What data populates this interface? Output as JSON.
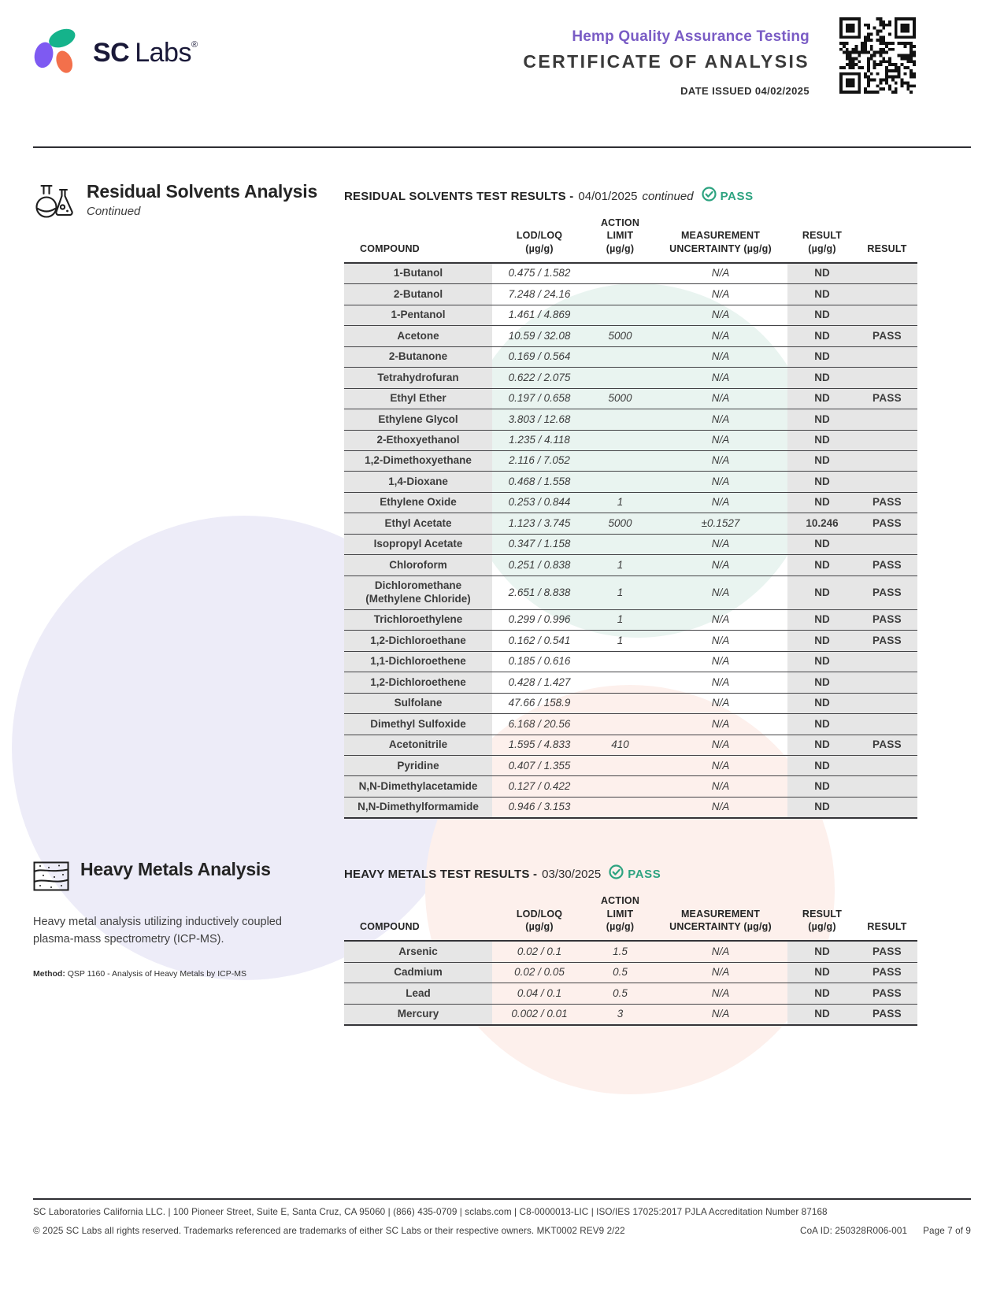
{
  "header": {
    "logo": {
      "brand_bold": "SC",
      "brand_light": "Labs",
      "registered": "®",
      "mark_icon": "sclabs-logo-mark",
      "mark_colors": {
        "teal": "#15b38b",
        "purple": "#7e5af2",
        "coral": "#f3704b"
      }
    },
    "program_title": "Hemp Quality Assurance Testing",
    "document_title": "CERTIFICATE OF ANALYSIS",
    "date_issued": "DATE ISSUED 04/02/2025",
    "qr_icon": "qr-code"
  },
  "solvents_section": {
    "icon": "flask-icon",
    "title": "Residual Solvents Analysis",
    "subtitle": "Continued",
    "results_title": "RESIDUAL SOLVENTS TEST RESULTS -",
    "results_date": "04/01/2025",
    "results_continued": "continued",
    "pass_icon": "check-icon",
    "pass_label": "PASS",
    "columns": [
      "COMPOUND",
      "LOD/LOQ\n(µg/g)",
      "ACTION LIMIT\n(µg/g)",
      "MEASUREMENT\nUNCERTAINTY (µg/g)",
      "RESULT\n(µg/g)",
      "RESULT"
    ],
    "rows": [
      {
        "name": "1-Butanol",
        "lod": "0.475 / 1.582",
        "action": "",
        "unc": "N/A",
        "result": "ND",
        "status": ""
      },
      {
        "name": "2-Butanol",
        "lod": "7.248 / 24.16",
        "action": "",
        "unc": "N/A",
        "result": "ND",
        "status": ""
      },
      {
        "name": "1-Pentanol",
        "lod": "1.461 / 4.869",
        "action": "",
        "unc": "N/A",
        "result": "ND",
        "status": ""
      },
      {
        "name": "Acetone",
        "lod": "10.59 / 32.08",
        "action": "5000",
        "unc": "N/A",
        "result": "ND",
        "status": "PASS"
      },
      {
        "name": "2-Butanone",
        "lod": "0.169 / 0.564",
        "action": "",
        "unc": "N/A",
        "result": "ND",
        "status": ""
      },
      {
        "name": "Tetrahydrofuran",
        "lod": "0.622 / 2.075",
        "action": "",
        "unc": "N/A",
        "result": "ND",
        "status": ""
      },
      {
        "name": "Ethyl Ether",
        "lod": "0.197 / 0.658",
        "action": "5000",
        "unc": "N/A",
        "result": "ND",
        "status": "PASS"
      },
      {
        "name": "Ethylene Glycol",
        "lod": "3.803 / 12.68",
        "action": "",
        "unc": "N/A",
        "result": "ND",
        "status": ""
      },
      {
        "name": "2-Ethoxyethanol",
        "lod": "1.235 / 4.118",
        "action": "",
        "unc": "N/A",
        "result": "ND",
        "status": ""
      },
      {
        "name": "1,2-Dimethoxyethane",
        "lod": "2.116 / 7.052",
        "action": "",
        "unc": "N/A",
        "result": "ND",
        "status": ""
      },
      {
        "name": "1,4-Dioxane",
        "lod": "0.468 / 1.558",
        "action": "",
        "unc": "N/A",
        "result": "ND",
        "status": ""
      },
      {
        "name": "Ethylene Oxide",
        "lod": "0.253 / 0.844",
        "action": "1",
        "unc": "N/A",
        "result": "ND",
        "status": "PASS"
      },
      {
        "name": "Ethyl Acetate",
        "lod": "1.123 / 3.745",
        "action": "5000",
        "unc": "±0.1527",
        "result": "10.246",
        "status": "PASS"
      },
      {
        "name": "Isopropyl Acetate",
        "lod": "0.347 / 1.158",
        "action": "",
        "unc": "N/A",
        "result": "ND",
        "status": ""
      },
      {
        "name": "Chloroform",
        "lod": "0.251 / 0.838",
        "action": "1",
        "unc": "N/A",
        "result": "ND",
        "status": "PASS"
      },
      {
        "name": "Dichloromethane\n(Methylene Chloride)",
        "lod": "2.651 / 8.838",
        "action": "1",
        "unc": "N/A",
        "result": "ND",
        "status": "PASS"
      },
      {
        "name": "Trichloroethylene",
        "lod": "0.299 / 0.996",
        "action": "1",
        "unc": "N/A",
        "result": "ND",
        "status": "PASS"
      },
      {
        "name": "1,2-Dichloroethane",
        "lod": "0.162 / 0.541",
        "action": "1",
        "unc": "N/A",
        "result": "ND",
        "status": "PASS"
      },
      {
        "name": "1,1-Dichloroethene",
        "lod": "0.185 / 0.616",
        "action": "",
        "unc": "N/A",
        "result": "ND",
        "status": ""
      },
      {
        "name": "1,2-Dichloroethene",
        "lod": "0.428 / 1.427",
        "action": "",
        "unc": "N/A",
        "result": "ND",
        "status": ""
      },
      {
        "name": "Sulfolane",
        "lod": "47.66 / 158.9",
        "action": "",
        "unc": "N/A",
        "result": "ND",
        "status": ""
      },
      {
        "name": "Dimethyl Sulfoxide",
        "lod": "6.168 / 20.56",
        "action": "",
        "unc": "N/A",
        "result": "ND",
        "status": ""
      },
      {
        "name": "Acetonitrile",
        "lod": "1.595 / 4.833",
        "action": "410",
        "unc": "N/A",
        "result": "ND",
        "status": "PASS"
      },
      {
        "name": "Pyridine",
        "lod": "0.407 / 1.355",
        "action": "",
        "unc": "N/A",
        "result": "ND",
        "status": ""
      },
      {
        "name": "N,N-Dimethylacetamide",
        "lod": "0.127 / 0.422",
        "action": "",
        "unc": "N/A",
        "result": "ND",
        "status": ""
      },
      {
        "name": "N,N-Dimethylformamide",
        "lod": "0.946 / 3.153",
        "action": "",
        "unc": "N/A",
        "result": "ND",
        "status": ""
      }
    ]
  },
  "metals_section": {
    "icon": "strata-icon",
    "title": "Heavy Metals Analysis",
    "description": "Heavy metal analysis utilizing inductively coupled plasma-mass spectrometry (ICP-MS).",
    "method_label": "Method:",
    "method_text": "QSP 1160 - Analysis of Heavy Metals by ICP-MS",
    "results_title": "HEAVY METALS TEST RESULTS -",
    "results_date": "03/30/2025",
    "pass_icon": "check-icon",
    "pass_label": "PASS",
    "columns": [
      "COMPOUND",
      "LOD/LOQ\n(µg/g)",
      "ACTION LIMIT\n(µg/g)",
      "MEASUREMENT\nUNCERTAINTY (µg/g)",
      "RESULT\n(µg/g)",
      "RESULT"
    ],
    "rows": [
      {
        "name": "Arsenic",
        "lod": "0.02 / 0.1",
        "action": "1.5",
        "unc": "N/A",
        "result": "ND",
        "status": "PASS"
      },
      {
        "name": "Cadmium",
        "lod": "0.02 / 0.05",
        "action": "0.5",
        "unc": "N/A",
        "result": "ND",
        "status": "PASS"
      },
      {
        "name": "Lead",
        "lod": "0.04 / 0.1",
        "action": "0.5",
        "unc": "N/A",
        "result": "ND",
        "status": "PASS"
      },
      {
        "name": "Mercury",
        "lod": "0.002 / 0.01",
        "action": "3",
        "unc": "N/A",
        "result": "ND",
        "status": "PASS"
      }
    ]
  },
  "footer": {
    "line1": "SC Laboratories California LLC. | 100 Pioneer Street, Suite E, Santa Cruz, CA 95060 | (866) 435-0709 | sclabs.com | C8-0000013-LIC | ISO/IES 17025:2017 PJLA Accreditation Number 87168",
    "line2_left": "© 2025 SC Labs all rights reserved. Trademarks referenced are trademarks of either SC Labs or their respective owners. MKT0002 REV9 2/22",
    "coa_id": "CoA ID: 250328R006-001",
    "page": "Page 7 of 9"
  },
  "colors": {
    "accent_purple": "#7a5cc5",
    "pass_teal": "#2da380",
    "table_gray": "#e6e6e6",
    "rule_dark": "#2e2e33"
  }
}
